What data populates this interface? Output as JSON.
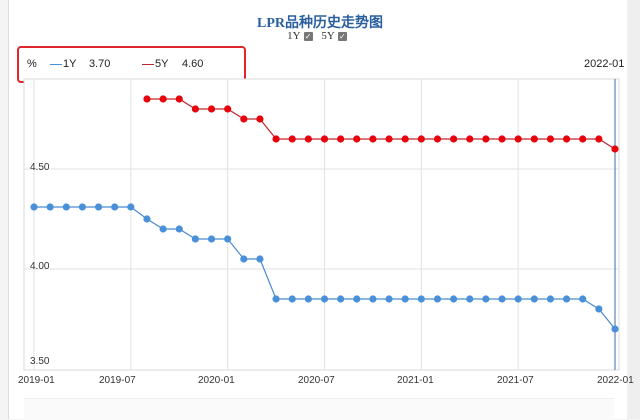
{
  "header": {
    "title": "LPR品种历史走势图",
    "toggles": [
      {
        "label": "1Y",
        "checked": true
      },
      {
        "label": "5Y",
        "checked": true
      }
    ]
  },
  "legend": {
    "unit": "%",
    "items": [
      {
        "name": "1Y",
        "value": "3.70",
        "color": "#4a90d9"
      },
      {
        "name": "5Y",
        "value": "4.60",
        "color": "#e8000b"
      }
    ],
    "hover_date": "2022-01"
  },
  "axes": {
    "y_ticks": [
      "4.50",
      "4.00",
      "3.50"
    ],
    "x_ticks": [
      "2019-01",
      "2019-07",
      "2020-01",
      "2020-07",
      "2021-01",
      "2021-07",
      "2022-01"
    ]
  },
  "chart_data": {
    "type": "line",
    "title": "LPR品种历史走势图",
    "xlabel": "",
    "ylabel": "%",
    "ylim": [
      3.5,
      4.9
    ],
    "grid": true,
    "legend_position": "top-left",
    "x": [
      "2019-01",
      "2019-02",
      "2019-03",
      "2019-04",
      "2019-05",
      "2019-06",
      "2019-07",
      "2019-08",
      "2019-09",
      "2019-10",
      "2019-11",
      "2019-12",
      "2020-01",
      "2020-02",
      "2020-03",
      "2020-04",
      "2020-05",
      "2020-06",
      "2020-07",
      "2020-08",
      "2020-09",
      "2020-10",
      "2020-11",
      "2020-12",
      "2021-01",
      "2021-02",
      "2021-03",
      "2021-04",
      "2021-05",
      "2021-06",
      "2021-07",
      "2021-08",
      "2021-09",
      "2021-10",
      "2021-11",
      "2021-12",
      "2022-01"
    ],
    "series": [
      {
        "name": "1Y",
        "color": "#4a90d9",
        "values": [
          4.31,
          4.31,
          4.31,
          4.31,
          4.31,
          4.31,
          4.31,
          4.25,
          4.2,
          4.2,
          4.15,
          4.15,
          4.15,
          4.05,
          4.05,
          3.85,
          3.85,
          3.85,
          3.85,
          3.85,
          3.85,
          3.85,
          3.85,
          3.85,
          3.85,
          3.85,
          3.85,
          3.85,
          3.85,
          3.85,
          3.85,
          3.85,
          3.85,
          3.85,
          3.85,
          3.8,
          3.7
        ]
      },
      {
        "name": "5Y",
        "color": "#e8000b",
        "values": [
          null,
          null,
          null,
          null,
          null,
          null,
          null,
          4.85,
          4.85,
          4.85,
          4.8,
          4.8,
          4.8,
          4.75,
          4.75,
          4.65,
          4.65,
          4.65,
          4.65,
          4.65,
          4.65,
          4.65,
          4.65,
          4.65,
          4.65,
          4.65,
          4.65,
          4.65,
          4.65,
          4.65,
          4.65,
          4.65,
          4.65,
          4.65,
          4.65,
          4.65,
          4.6
        ]
      }
    ]
  }
}
